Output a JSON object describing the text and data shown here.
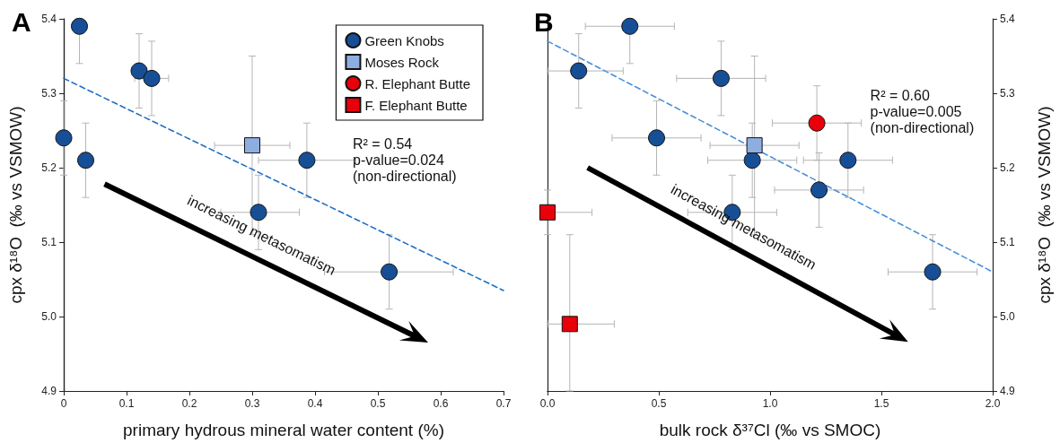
{
  "chart_data": [
    {
      "type": "scatter",
      "title": "A",
      "xlabel": "primary hydrous mineral water content (%)",
      "ylabel": "cpx δ¹⁸O  (‰ vs VSMOW)",
      "xlim": [
        0,
        0.7
      ],
      "xticks": [
        0,
        0.1,
        0.2,
        0.3,
        0.4,
        0.5,
        0.6,
        0.7
      ],
      "ylim": [
        4.9,
        5.4
      ],
      "yticks": [
        4.9,
        {
          "value": 5,
          "label": "5.0"
        },
        5.1,
        5.2,
        5.3,
        5.4
      ],
      "grid": false,
      "legend": "top right",
      "annotations": [
        "R² = 0.54\np-value=0.024\n(non-directional)",
        "increasing metasomatism"
      ],
      "series": [
        {
          "name": "Green Knobs",
          "color": "#174f96",
          "marker": "circle",
          "x": [
            0.025,
            0.12,
            0.14,
            0,
            0.035,
            0.387,
            0.31,
            0.518
          ],
          "values": [
            5.39,
            5.33,
            5.32,
            5.24,
            5.21,
            5.21,
            5.14,
            5.06
          ],
          "errors": [
            [
              5.34,
              5.4
            ],
            0.05,
            0.05,
            0.05,
            0.05,
            0.05,
            0.05,
            0.05
          ],
          "xerrors": [
            null,
            0.012,
            0.027,
            null,
            null,
            [
              0.31,
              0.465
            ],
            [
              0.25,
              0.375
            ],
            [
              0.415,
              0.62
            ]
          ]
        },
        {
          "name": "Moses Rock",
          "color": "#8eaee0",
          "marker": "square",
          "x": [
            0.3
          ],
          "values": [
            5.23
          ],
          "errors": [
            0.12
          ],
          "xerrors": [
            0.06
          ]
        },
        {
          "name": "R. Elephant Butte",
          "color": "#e8000b",
          "marker": "circle"
        },
        {
          "name": "F. Elephant Butte",
          "color": "#e8000b",
          "marker": "square"
        },
        {
          "type": "line",
          "color": "#1f6fc4",
          "line_style": "dashed",
          "marker": "none",
          "x": [
            0,
            0.7
          ],
          "values": [
            5.32,
            5.035
          ]
        }
      ]
    },
    {
      "type": "scatter",
      "title": "B",
      "xlabel": "bulk rock δ³⁷Cl (‰ vs SMOC)",
      "y2label": "cpx δ¹⁸O  (‰ vs VSMOW)",
      "xlim": [
        0,
        2
      ],
      "xticks": [
        {
          "value": 0,
          "label": "0.0"
        },
        0.5,
        {
          "value": 1,
          "label": "1.0"
        },
        1.5,
        {
          "value": 2,
          "label": "2.0"
        }
      ],
      "y2lim": [
        4.9,
        5.4
      ],
      "y2ticks": [
        4.9,
        {
          "value": 5,
          "label": "5.0"
        },
        5.1,
        5.2,
        5.3,
        5.4
      ],
      "grid": false,
      "annotations": [
        "R² = 0.60\np-value=0.005\n(non-directional)",
        "increasing metasomatism"
      ],
      "series": [
        {
          "color": "#174f96",
          "marker": "circle",
          "axis": "y2",
          "x": [
            0.37,
            0.14,
            0.78,
            0.49,
            0.92,
            1.35,
            1.22,
            0.83,
            1.73
          ],
          "values": [
            5.39,
            5.33,
            5.32,
            5.24,
            5.21,
            5.21,
            5.17,
            5.14,
            5.06
          ],
          "errors": [
            [
              5.34,
              5.4
            ],
            0.05,
            0.05,
            0.05,
            0.05,
            0.05,
            0.05,
            0.05,
            0.05
          ],
          "xerrors": [
            [
              0.17,
              0.57
            ],
            [
              0,
              0.34
            ],
            0.2,
            0.2,
            0.2,
            0.2,
            0.2,
            0.2,
            0.2
          ]
        },
        {
          "color": "#8eaee0",
          "marker": "square",
          "axis": "y2",
          "x": [
            0.93
          ],
          "values": [
            5.23
          ],
          "errors": [
            0.12
          ],
          "xerrors": [
            0.2
          ]
        },
        {
          "color": "#e8000b",
          "marker": "circle",
          "axis": "y2",
          "x": [
            1.21
          ],
          "values": [
            5.26
          ],
          "errors": [
            0.05
          ],
          "xerrors": [
            0.2
          ]
        },
        {
          "color": "#e8000b",
          "marker": "square",
          "axis": "y2",
          "x": [
            0,
            0.1
          ],
          "values": [
            5.14,
            4.99
          ],
          "errors": [
            [
              5.11,
              5.17
            ],
            [
              4.9,
              5.11
            ]
          ],
          "xerrors": [
            [
              0,
              0.2
            ],
            [
              0,
              0.3
            ]
          ]
        },
        {
          "type": "line",
          "axis": "y2",
          "color": "#4a90d9",
          "line_style": "dashed",
          "marker": "none",
          "x": [
            0,
            2
          ],
          "values": [
            5.37,
            5.06
          ]
        }
      ]
    }
  ]
}
